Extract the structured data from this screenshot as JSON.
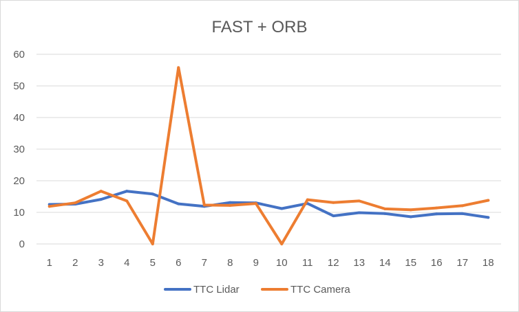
{
  "chart_data": {
    "type": "line",
    "title": "FAST + ORB",
    "xlabel": "",
    "ylabel": "",
    "x": [
      1,
      2,
      3,
      4,
      5,
      6,
      7,
      8,
      9,
      10,
      11,
      12,
      13,
      14,
      15,
      16,
      17,
      18
    ],
    "ylim": [
      0,
      60
    ],
    "yticks": [
      0,
      10,
      20,
      30,
      40,
      50,
      60
    ],
    "grid": true,
    "legend_position": "bottom",
    "series": [
      {
        "name": "TTC Lidar",
        "color": "#4472C4",
        "values": [
          12.5,
          12.6,
          14.1,
          16.7,
          15.8,
          12.7,
          11.9,
          13.1,
          13.0,
          11.2,
          12.8,
          8.9,
          9.9,
          9.6,
          8.6,
          9.5,
          9.6,
          8.4
        ]
      },
      {
        "name": "TTC Camera",
        "color": "#ED7D31",
        "values": [
          11.9,
          13.0,
          16.7,
          13.6,
          0.0,
          55.8,
          12.3,
          12.2,
          12.8,
          0.0,
          14.0,
          13.1,
          13.6,
          11.1,
          10.8,
          11.4,
          12.1,
          13.8
        ]
      }
    ]
  }
}
